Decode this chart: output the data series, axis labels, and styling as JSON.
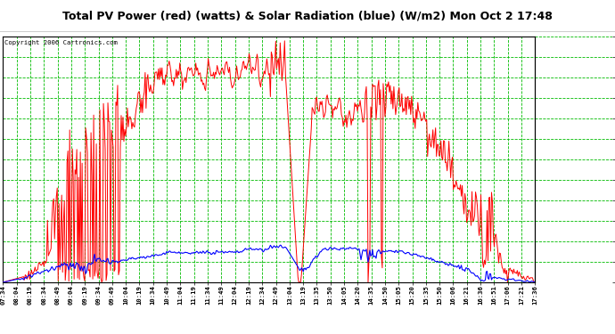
{
  "title": "Total PV Power (red) (watts) & Solar Radiation (blue) (W/m2) Mon Oct 2 17:48",
  "copyright": "Copyright 2006 Cartronics.com",
  "yticks": [
    16.0,
    299.6,
    583.1,
    866.7,
    1150.3,
    1433.8,
    1717.4,
    2001.0,
    2284.5,
    2568.1,
    2851.7,
    3135.2,
    3418.8
  ],
  "ymin": 16.0,
  "ymax": 3418.8,
  "xtick_labels": [
    "07:34",
    "08:04",
    "08:19",
    "08:34",
    "08:49",
    "09:04",
    "09:19",
    "09:34",
    "09:49",
    "10:04",
    "10:19",
    "10:34",
    "10:49",
    "11:04",
    "11:19",
    "11:34",
    "11:49",
    "12:04",
    "12:19",
    "12:34",
    "12:49",
    "13:04",
    "13:19",
    "13:35",
    "13:50",
    "14:05",
    "14:20",
    "14:35",
    "14:50",
    "15:05",
    "15:20",
    "15:35",
    "15:50",
    "16:06",
    "16:21",
    "16:36",
    "16:51",
    "17:06",
    "17:21",
    "17:36"
  ],
  "bg_color": "#ffffff",
  "grid_color": "#00bb00",
  "red_color": "#ff0000",
  "blue_color": "#0000ff",
  "title_color": "#000000",
  "copyright_color": "#000000"
}
